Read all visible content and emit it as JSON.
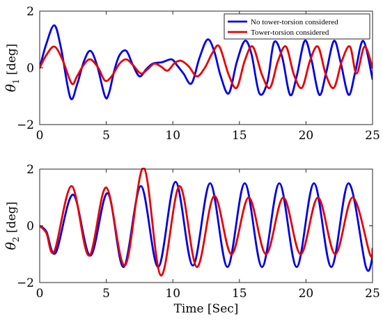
{
  "chart_data": [
    {
      "type": "line",
      "ylabel": "θ1 [deg]",
      "ylabel_symbol": "θ",
      "ylabel_sub": "1",
      "ylabel_unit": "[deg]",
      "xlabel": "",
      "xlim": [
        0,
        25
      ],
      "ylim": [
        -2,
        2
      ],
      "xticks": [
        0,
        5,
        10,
        15,
        20,
        25
      ],
      "yticks": [
        -2,
        0,
        2
      ],
      "grid": false,
      "legend_placement": "top-right",
      "series": [
        {
          "name": "No tower-torsion considered",
          "color": "#0000e6",
          "x": [
            0,
            0.5,
            1.1,
            1.6,
            2.3,
            2.8,
            3.3,
            3.8,
            4.3,
            4.9,
            5.2,
            5.6,
            6.0,
            6.5,
            7.0,
            7.5,
            8.0,
            8.5,
            9.2,
            9.9,
            10.3,
            10.8,
            11.4,
            12.0,
            12.6,
            13.1,
            13.6,
            14.2,
            14.8,
            15.4,
            15.9,
            16.5,
            17.1,
            17.6,
            18.2,
            18.8,
            19.3,
            19.9,
            20.4,
            21.0,
            21.5,
            22.1,
            22.6,
            23.2,
            23.7,
            24.3,
            25.0
          ],
          "y": [
            0,
            0.85,
            1.5,
            0.7,
            -1.05,
            -0.6,
            0.2,
            0.6,
            0.1,
            -1.0,
            -0.9,
            -0.1,
            0.45,
            0.6,
            0.1,
            -0.3,
            -0.05,
            0.15,
            0.2,
            0.3,
            0.1,
            -0.2,
            -0.55,
            0.35,
            1.0,
            0.6,
            -0.3,
            -0.9,
            0.2,
            0.95,
            0.5,
            -0.9,
            -0.5,
            0.9,
            0.4,
            -0.95,
            -0.3,
            0.95,
            0.3,
            -0.95,
            -0.2,
            0.95,
            0.2,
            -0.95,
            -0.15,
            0.95,
            -0.4
          ]
        },
        {
          "name": "Tower-torsion considered",
          "color": "#e60000",
          "x": [
            0,
            0.5,
            1.1,
            1.7,
            2.4,
            2.8,
            3.3,
            3.8,
            4.4,
            4.9,
            5.4,
            6.0,
            6.5,
            7.0,
            7.6,
            8.1,
            8.6,
            9.1,
            9.6,
            10.1,
            10.6,
            11.2,
            11.8,
            12.4,
            13.0,
            13.5,
            14.2,
            14.8,
            15.4,
            16.0,
            16.7,
            17.3,
            17.9,
            18.5,
            19.1,
            19.7,
            20.3,
            20.9,
            21.5,
            22.1,
            22.7,
            23.3,
            23.8,
            24.4,
            25.0
          ],
          "y": [
            0,
            0.45,
            0.75,
            0.3,
            -0.55,
            -0.3,
            0.1,
            0.3,
            0.0,
            -0.45,
            -0.3,
            0.15,
            0.3,
            0.1,
            -0.2,
            -0.05,
            0.15,
            0.05,
            -0.1,
            0.15,
            0.25,
            0.05,
            -0.3,
            0.0,
            0.55,
            0.75,
            -0.25,
            -0.7,
            0.25,
            0.75,
            -0.25,
            -0.7,
            0.25,
            0.75,
            -0.25,
            -0.7,
            0.25,
            0.75,
            -0.25,
            -0.7,
            0.25,
            0.75,
            -0.2,
            0.75,
            0.0
          ]
        }
      ]
    },
    {
      "type": "line",
      "ylabel": "θ2 [deg]",
      "ylabel_symbol": "θ",
      "ylabel_sub": "2",
      "ylabel_unit": "[deg]",
      "xlabel": "Time [Sec]",
      "xlim": [
        0,
        25
      ],
      "ylim": [
        -2,
        2
      ],
      "xticks": [
        0,
        5,
        10,
        15,
        20,
        25
      ],
      "yticks": [
        -2,
        0,
        2
      ],
      "grid": false,
      "series": [
        {
          "name": "No tower-torsion considered",
          "color": "#0000e6",
          "x": [
            0,
            0.5,
            1.2,
            2.5,
            3.8,
            5.1,
            6.3,
            7.6,
            8.9,
            10.2,
            11.5,
            12.8,
            14.1,
            15.4,
            16.7,
            18.0,
            19.3,
            20.6,
            21.9,
            23.2,
            24.5,
            25.0
          ],
          "y": [
            0,
            -0.2,
            -0.95,
            1.1,
            -1.05,
            1.15,
            -1.45,
            1.4,
            -1.45,
            1.55,
            -1.4,
            1.5,
            -1.45,
            1.5,
            -1.45,
            1.5,
            -1.45,
            1.5,
            -1.45,
            1.5,
            -1.45,
            -1.1
          ]
        },
        {
          "name": "Tower-torsion considered",
          "color": "#e60000",
          "x": [
            0,
            0.5,
            1.1,
            2.4,
            3.7,
            5.0,
            6.4,
            7.8,
            9.1,
            10.5,
            11.8,
            13.1,
            14.4,
            15.7,
            17.0,
            18.3,
            19.6,
            20.9,
            22.2,
            23.5,
            24.8,
            25.0
          ],
          "y": [
            0,
            -0.25,
            -0.9,
            1.4,
            -1.05,
            1.35,
            -1.4,
            2.05,
            -1.75,
            1.4,
            -1.45,
            1.05,
            -1.0,
            1.0,
            -1.0,
            1.0,
            -1.0,
            1.0,
            -1.0,
            1.0,
            -1.0,
            -0.8
          ]
        }
      ]
    }
  ]
}
